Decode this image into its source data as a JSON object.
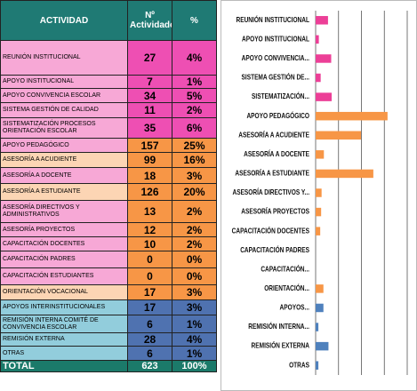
{
  "table": {
    "header": [
      "ACTIVIDAD",
      "Nº Actividades",
      "%"
    ],
    "header_color": "#1f7a74",
    "rows": [
      [
        "REUNIÓN INSTITUCIONAL",
        27,
        "4%"
      ],
      [
        "APOYO INSTITUCIONAL",
        7,
        "1%"
      ],
      [
        "APOYO CONVIVENCIA ESCOLAR",
        34,
        "5%"
      ],
      [
        "SISTEMA GESTIÓN DE CALIDAD",
        11,
        "2%"
      ],
      [
        "SISTEMATIZACIÓN PROCESOS ORIENTACIÓN ESCOLAR",
        35,
        "6%"
      ],
      [
        "APOYO PEDAGÓGICO",
        157,
        "25%"
      ],
      [
        "ASESORÍA A ACUDIENTE",
        99,
        "16%"
      ],
      [
        "ASESORÍA A DOCENTE",
        18,
        "3%"
      ],
      [
        "ASESORÍA A ESTUDIANTE",
        126,
        "20%"
      ],
      [
        "ASESORÍA DIRECTIVOS Y ADMINISTRATIVOS",
        13,
        "2%"
      ],
      [
        "ASESORÍA PROYECTOS",
        12,
        "2%"
      ],
      [
        "CAPACITACIÓN DOCENTES",
        10,
        "2%"
      ],
      [
        "CAPACITACIÓN PADRES",
        0,
        "0%"
      ],
      [
        "CAPACITACIÓN ESTUDIANTES",
        0,
        "0%"
      ],
      [
        "ORIENTACIÓN VOCACIONAL",
        17,
        "3%"
      ],
      [
        "APOYOS INTERINSTITUCIONALES",
        17,
        "3%"
      ],
      [
        "REMISIÓN INTERNA COMITÉ DE CONVIVENCIA ESCOLAR",
        6,
        "1%"
      ],
      [
        "REMISIÓN EXTERNA",
        28,
        "4%"
      ],
      [
        "OTRAS",
        6,
        "1%"
      ]
    ],
    "row_colors": [
      [
        "#f7a8d6",
        "#ee4fb3"
      ],
      [
        "#f7a8d6",
        "#ee4fb3"
      ],
      [
        "#f7a8d6",
        "#ee4fb3"
      ],
      [
        "#f7a8d6",
        "#ee4fb3"
      ],
      [
        "#f7a8d6",
        "#ee4fb3"
      ],
      [
        "#f7a8d6",
        "#f79646"
      ],
      [
        "#fcd5b4",
        "#f79646"
      ],
      [
        "#f7a8d6",
        "#f79646"
      ],
      [
        "#fcd5b4",
        "#f79646"
      ],
      [
        "#f7a8d6",
        "#f79646"
      ],
      [
        "#f7a8d6",
        "#f79646"
      ],
      [
        "#f7a8d6",
        "#f79646"
      ],
      [
        "#f7a8d6",
        "#f79646"
      ],
      [
        "#f7a8d6",
        "#f79646"
      ],
      [
        "#fcd5b4",
        "#f79646"
      ],
      [
        "#92cddc",
        "#4f72b0"
      ],
      [
        "#92cddc",
        "#4f72b0"
      ],
      [
        "#92cddc",
        "#4f72b0"
      ],
      [
        "#92cddc",
        "#4f72b0"
      ]
    ],
    "total": [
      "TOTAL",
      623,
      "100%"
    ],
    "total_color": "#1b7a6a"
  },
  "chart_data": {
    "type": "bar",
    "orientation": "horizontal",
    "categories": [
      "REUNIÓN INSTITUCIONAL",
      "APOYO INSTITUCIONAL",
      "APOYO CONVIVENCIA...",
      "SISTEMA GESTIÓN DE...",
      "SISTEMATIZACIÓN...",
      "APOYO PEDAGÓGICO",
      "ASESORÍA A ACUDIENTE",
      "ASESORÍA A DOCENTE",
      "ASESORÍA A ESTUDIANTE",
      "ASESORÍA DIRECTIVOS Y...",
      "ASESORÍA PROYECTOS",
      "CAPACITACIÓN DOCENTES",
      "CAPACITACIÓN PADRES",
      "CAPACITACIÓN...",
      "ORIENTACIÓN...",
      "APOYOS...",
      "REMISIÓN INTERNA...",
      "REMISIÓN EXTERNA",
      "OTRAS"
    ],
    "values": [
      27,
      7,
      34,
      11,
      35,
      157,
      99,
      18,
      126,
      13,
      12,
      10,
      0,
      0,
      17,
      17,
      6,
      28,
      6
    ],
    "colors": [
      "#ec3f97",
      "#ec3f97",
      "#ec3f97",
      "#ec3f97",
      "#ec3f97",
      "#f79646",
      "#f79646",
      "#f79646",
      "#f79646",
      "#f79646",
      "#f79646",
      "#f79646",
      "#f79646",
      "#f79646",
      "#f79646",
      "#4f81bd",
      "#4f81bd",
      "#4f81bd",
      "#4f81bd"
    ],
    "xlim": [
      0,
      200
    ],
    "xticks": [
      0,
      50,
      100,
      150,
      200
    ],
    "grid": true
  }
}
